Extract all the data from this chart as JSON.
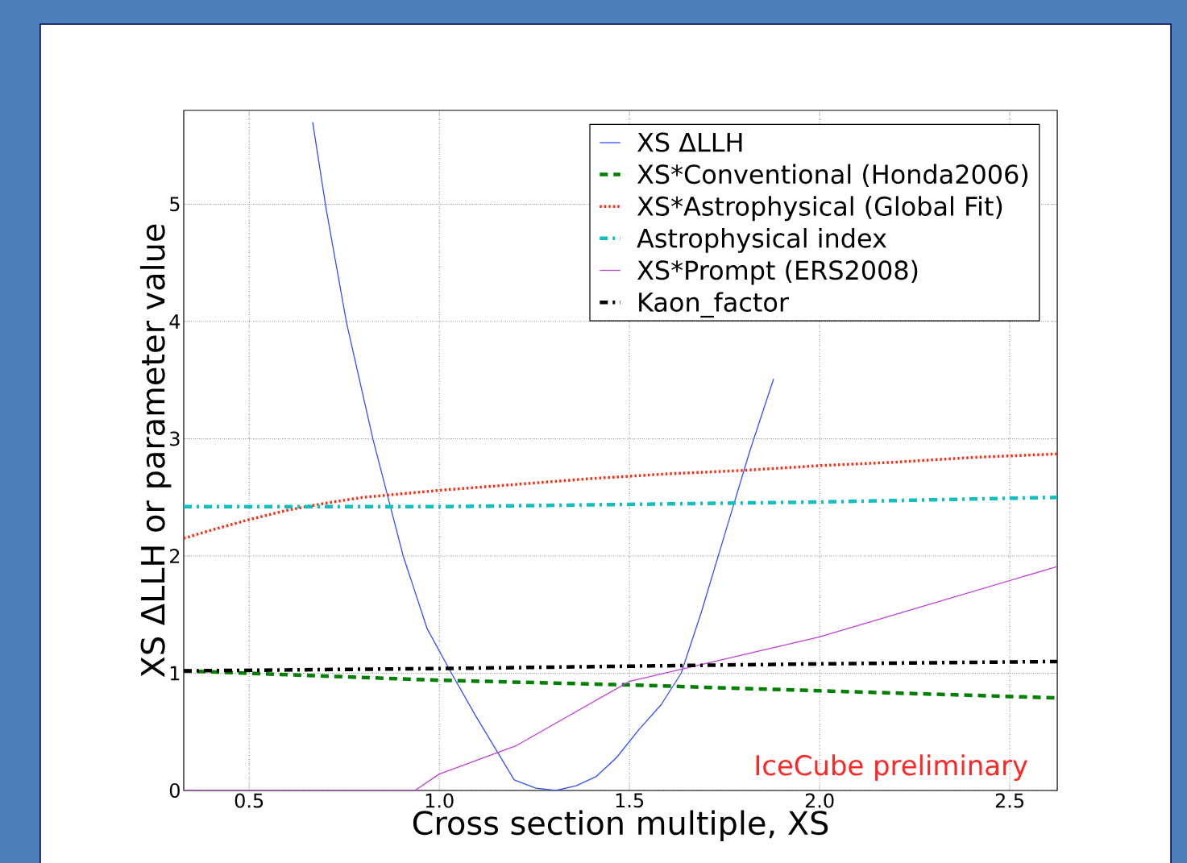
{
  "chart_data": {
    "type": "line",
    "xlabel": "Cross section multiple, XS",
    "ylabel": "XS ΔLLH or parameter value",
    "xlim": [
      0.328,
      2.625
    ],
    "ylim": [
      0,
      5.8
    ],
    "xticks": [
      0.5,
      {
        "value": 1.0,
        "label": "1.0"
      },
      1.5,
      {
        "value": 2.0,
        "label": "2.0"
      },
      2.5
    ],
    "yticks": [
      0,
      1,
      2,
      3,
      4,
      5
    ],
    "grid": true,
    "legend": "top right",
    "annotations": [
      "IceCube preliminary"
    ],
    "series": [
      {
        "name": "XS ΔLLH",
        "color": "#3050ff",
        "line_style": "solid",
        "x": [
          0.667,
          0.703,
          0.756,
          0.826,
          0.905,
          0.968,
          1.032,
          1.095,
          1.197,
          1.254,
          1.307,
          1.36,
          1.413,
          1.466,
          1.525,
          1.583,
          1.636,
          1.689,
          1.752,
          1.816,
          1.879
        ],
        "values": [
          5.7,
          4.95,
          3.99,
          2.99,
          2.0,
          1.38,
          1.0,
          0.64,
          0.09,
          0.02,
          0.0,
          0.04,
          0.12,
          0.28,
          0.52,
          0.73,
          1.0,
          1.52,
          2.2,
          2.89,
          3.51
        ]
      },
      {
        "name": "XS*Conventional (Honda2006)",
        "color": "#008000",
        "line_style": "dashed",
        "x": [
          0.328,
          1.0,
          1.5,
          2.0,
          2.625
        ],
        "values": [
          1.02,
          0.94,
          0.9,
          0.85,
          0.79
        ]
      },
      {
        "name": "XS*Astrophysical (Global Fit)",
        "color": "#ff2a10",
        "line_style": "dotted",
        "x": [
          0.328,
          0.4,
          0.5,
          0.6,
          0.7,
          0.8,
          0.9,
          1.0,
          1.2,
          1.4,
          1.6,
          1.8,
          2.0,
          2.2,
          2.4,
          2.625
        ],
        "values": [
          2.15,
          2.22,
          2.31,
          2.39,
          2.45,
          2.5,
          2.53,
          2.56,
          2.61,
          2.66,
          2.7,
          2.73,
          2.77,
          2.8,
          2.84,
          2.87
        ]
      },
      {
        "name": "Astrophysical index",
        "color": "#10c0c0",
        "line_style": "dashdot",
        "x": [
          0.328,
          1.0,
          1.5,
          2.0,
          2.625
        ],
        "values": [
          2.42,
          2.42,
          2.44,
          2.46,
          2.5
        ]
      },
      {
        "name": "XS*Prompt (ERS2008)",
        "color": "#c040d8",
        "line_style": "solid",
        "x": [
          0.328,
          0.936,
          1.0,
          1.201,
          1.5,
          2.0,
          2.625
        ],
        "values": [
          0,
          0,
          0.14,
          0.38,
          0.93,
          1.31,
          1.91
        ]
      },
      {
        "name": "Kaon_factor",
        "color": "#000000",
        "line_style": "dashdot",
        "x": [
          0.328,
          1.0,
          1.5,
          2.0,
          2.625
        ],
        "values": [
          1.02,
          1.04,
          1.06,
          1.08,
          1.1
        ]
      }
    ]
  }
}
